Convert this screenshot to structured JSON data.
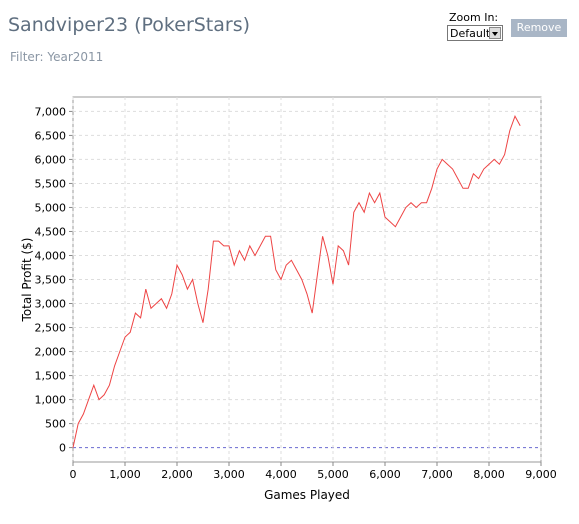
{
  "chart_data": {
    "type": "line",
    "title": "Sandviper23 (PokerStars)",
    "subtitle": "Filter: Year2011",
    "x_label": "Games Played",
    "y_label": "Total Profit ($)",
    "color": "#ee4444",
    "grid": true,
    "x": [
      0,
      100,
      200,
      300,
      400,
      500,
      600,
      700,
      800,
      900,
      1000,
      1100,
      1200,
      1300,
      1400,
      1500,
      1600,
      1700,
      1800,
      1900,
      2000,
      2100,
      2200,
      2300,
      2400,
      2500,
      2600,
      2700,
      2800,
      2900,
      3000,
      3100,
      3200,
      3300,
      3400,
      3500,
      3600,
      3700,
      3800,
      3900,
      4000,
      4100,
      4200,
      4300,
      4400,
      4500,
      4600,
      4700,
      4800,
      4900,
      5000,
      5100,
      5200,
      5300,
      5400,
      5500,
      5600,
      5700,
      5800,
      5900,
      6000,
      6100,
      6200,
      6300,
      6400,
      6500,
      6600,
      6700,
      6800,
      6900,
      7000,
      7100,
      7200,
      7300,
      7400,
      7500,
      7600,
      7700,
      7800,
      7900,
      8000,
      8100,
      8200,
      8300,
      8400,
      8500,
      8600
    ],
    "values": [
      0,
      500,
      700,
      1000,
      1300,
      1000,
      1100,
      1300,
      1700,
      2000,
      2300,
      2400,
      2800,
      2700,
      3300,
      2900,
      3000,
      3100,
      2900,
      3200,
      3800,
      3600,
      3300,
      3500,
      3000,
      2600,
      3300,
      4300,
      4300,
      4200,
      4200,
      3800,
      4100,
      3900,
      4200,
      4000,
      4200,
      4400,
      4400,
      3700,
      3500,
      3800,
      3900,
      3700,
      3500,
      3200,
      2800,
      3600,
      4400,
      4000,
      3400,
      4200,
      4100,
      3800,
      4900,
      5100,
      4900,
      5300,
      5100,
      5300,
      4800,
      4700,
      4600,
      4800,
      5000,
      5100,
      5000,
      5100,
      5100,
      5400,
      5800,
      6000,
      5900,
      5800,
      5600,
      5400,
      5400,
      5700,
      5600,
      5800,
      5900,
      6000,
      5900,
      6100,
      6600,
      6900,
      6700
    ],
    "xlim": [
      0,
      9000
    ],
    "ylim": [
      -300,
      7300
    ],
    "xticks": [
      0,
      {
        "value": 1000,
        "label": "1,000"
      },
      {
        "value": 2000,
        "label": "2,000"
      },
      {
        "value": 3000,
        "label": "3,000"
      },
      {
        "value": 4000,
        "label": "4,000"
      },
      {
        "value": 5000,
        "label": "5,000"
      },
      {
        "value": 6000,
        "label": "6,000"
      },
      {
        "value": 7000,
        "label": "7,000"
      },
      {
        "value": 8000,
        "label": "8,000"
      },
      {
        "value": 9000,
        "label": "9,000"
      }
    ],
    "yticks": [
      0,
      500,
      {
        "value": 1000,
        "label": "1,000"
      },
      {
        "value": 1500,
        "label": "1,500"
      },
      {
        "value": 2000,
        "label": "2,000"
      },
      {
        "value": 2500,
        "label": "2,500"
      },
      {
        "value": 3000,
        "label": "3,000"
      },
      {
        "value": 3500,
        "label": "3,500"
      },
      {
        "value": 4000,
        "label": "4,000"
      },
      {
        "value": 4500,
        "label": "4,500"
      },
      {
        "value": 5000,
        "label": "5,000"
      },
      {
        "value": 5500,
        "label": "5,500"
      },
      {
        "value": 6000,
        "label": "6,000"
      },
      {
        "value": 6500,
        "label": "6,500"
      },
      {
        "value": 7000,
        "label": "7,000"
      }
    ]
  },
  "controls": {
    "zoom_label": "Zoom In:",
    "zoom_value": "Default",
    "button": "Remove"
  }
}
